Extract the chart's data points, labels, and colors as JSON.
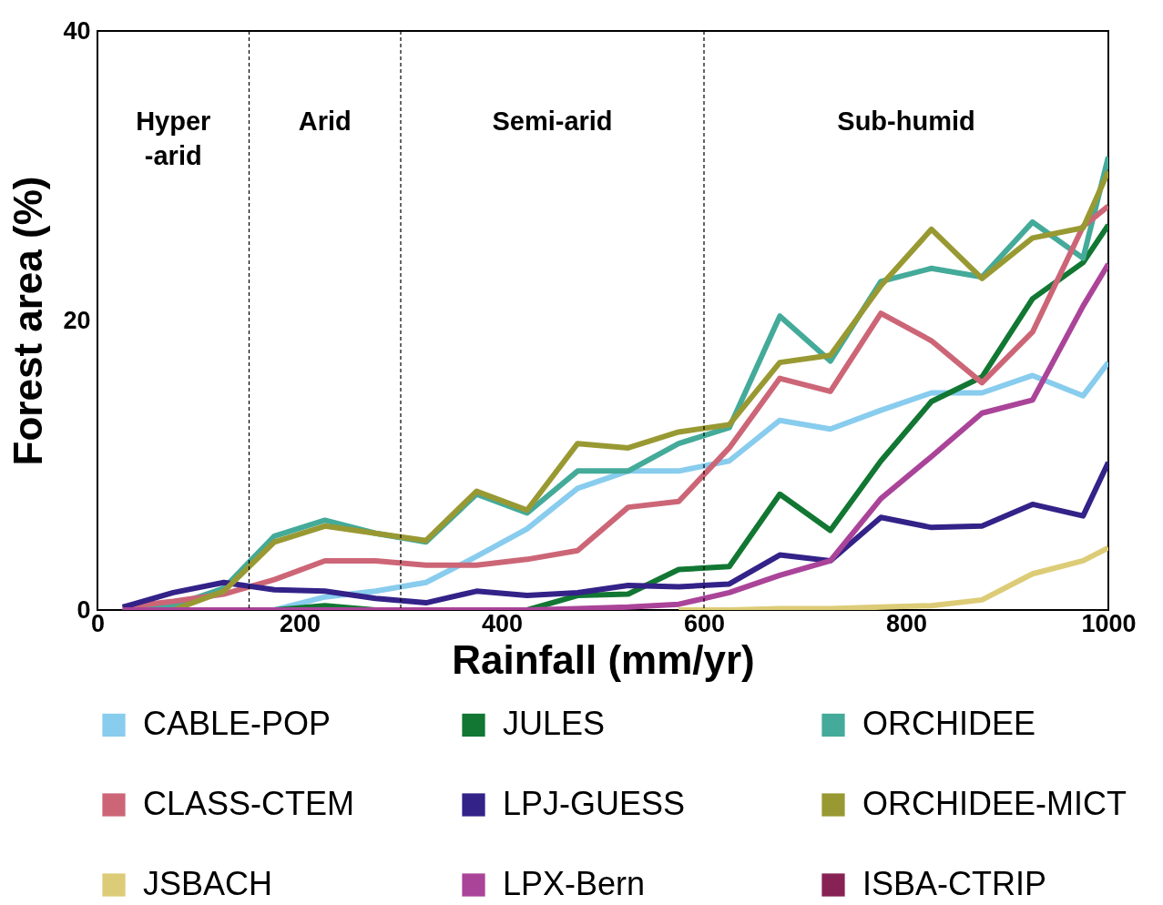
{
  "chart_data": {
    "type": "line",
    "xlabel": "Rainfall (mm/yr)",
    "ylabel": "Forest area (%)",
    "x": [
      25,
      75,
      125,
      175,
      225,
      275,
      325,
      375,
      425,
      475,
      525,
      575,
      625,
      675,
      725,
      775,
      825,
      875,
      925,
      975,
      1000
    ],
    "series": [
      {
        "name": "CABLE-POP",
        "color": "#88ccee",
        "values": [
          null,
          null,
          null,
          0,
          0.9,
          1.3,
          1.9,
          3.7,
          5.6,
          8.4,
          9.6,
          9.6,
          10.3,
          13.1,
          12.5,
          13.8,
          15.0,
          15.0,
          16.2,
          14.8,
          17.1
        ]
      },
      {
        "name": "JULES",
        "color": "#117733",
        "values": [
          0,
          0,
          0,
          0,
          0.3,
          0,
          0,
          0,
          0,
          1.0,
          1.1,
          2.8,
          3.0,
          8.0,
          5.5,
          10.3,
          14.4,
          16.1,
          21.5,
          24.0,
          26.6
        ]
      },
      {
        "name": "ORCHIDEE",
        "color": "#44aa99",
        "values": [
          0,
          0.3,
          1.5,
          5.1,
          6.2,
          5.3,
          4.7,
          8.0,
          6.7,
          9.6,
          9.6,
          11.5,
          12.6,
          20.3,
          17.2,
          22.7,
          23.6,
          23.0,
          26.8,
          24.3,
          31.3
        ]
      },
      {
        "name": "CLASS-CTEM",
        "color": "#cc6677",
        "values": [
          0.2,
          0.6,
          1.1,
          2.1,
          3.4,
          3.4,
          3.1,
          3.1,
          3.5,
          4.1,
          7.1,
          7.5,
          11.2,
          16.0,
          15.1,
          20.5,
          18.6,
          15.7,
          19.2,
          26.5,
          27.9
        ]
      },
      {
        "name": "LPJ-GUESS",
        "color": "#332288",
        "values": [
          0.2,
          1.2,
          1.9,
          1.4,
          1.3,
          0.8,
          0.5,
          1.3,
          1.0,
          1.2,
          1.7,
          1.6,
          1.8,
          3.8,
          3.4,
          6.4,
          5.7,
          5.8,
          7.3,
          6.5,
          10.2
        ]
      },
      {
        "name": "ORCHIDEE-MICT",
        "color": "#999933",
        "values": [
          0,
          0,
          1.3,
          4.7,
          5.8,
          5.3,
          4.8,
          8.2,
          6.9,
          11.5,
          11.2,
          12.3,
          12.8,
          17.1,
          17.6,
          22.4,
          26.3,
          22.9,
          25.7,
          26.4,
          30.3
        ]
      },
      {
        "name": "JSBACH",
        "color": "#ddcc77",
        "values": [
          null,
          null,
          null,
          null,
          null,
          null,
          null,
          null,
          null,
          null,
          null,
          0,
          0,
          0.1,
          0.1,
          0.2,
          0.3,
          0.7,
          2.5,
          3.4,
          4.3
        ]
      },
      {
        "name": "LPX-Bern",
        "color": "#aa4499",
        "values": [
          0,
          0,
          0,
          0,
          0,
          0,
          0,
          0,
          0,
          0.1,
          0.2,
          0.4,
          1.2,
          2.4,
          3.4,
          7.7,
          10.6,
          13.6,
          14.5,
          21.0,
          23.9
        ]
      },
      {
        "name": "ISBA-CTRIP",
        "color": "#882255",
        "values": [
          null,
          null,
          null,
          null,
          null,
          null,
          null,
          null,
          null,
          null,
          null,
          null,
          null,
          null,
          null,
          null,
          null,
          null,
          null,
          null,
          null
        ]
      }
    ],
    "xlim": [
      0,
      1000
    ],
    "xticks": [
      0,
      200,
      400,
      600,
      800,
      1000
    ],
    "ylim": [
      0,
      40
    ],
    "yticks": [
      0,
      20,
      40
    ],
    "grid": false,
    "legend": "bottom",
    "line_style": "solid",
    "marker": "none",
    "ref_lines": [
      {
        "axis": "x",
        "value": 150,
        "line_style": "dashed",
        "color": "#000000"
      },
      {
        "axis": "x",
        "value": 300,
        "line_style": "dashed",
        "color": "#000000"
      },
      {
        "axis": "x",
        "value": 600,
        "line_style": "dashed",
        "color": "#000000"
      }
    ],
    "annotations": [
      "Hyper\n-arid",
      "Arid",
      "Semi-arid",
      "Sub-humid"
    ]
  }
}
